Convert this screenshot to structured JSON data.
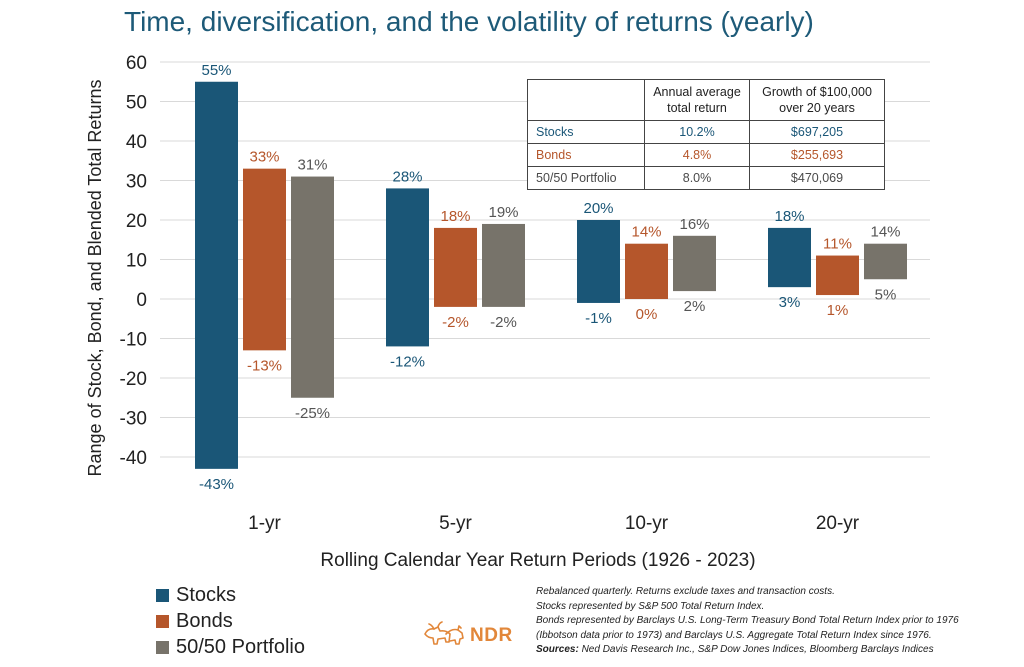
{
  "title": "Time, diversification, and the volatility of returns (yearly)",
  "colors": {
    "stocks": "#1a5677",
    "bonds": "#b5562b",
    "portfolio": "#77736a",
    "title": "#1d5a78",
    "logo": "#e2873a"
  },
  "chart_data": {
    "type": "bar",
    "subtype": "floating-range",
    "title": "Time, diversification, and the volatility of returns (yearly)",
    "xlabel": "Rolling Calendar Year Return Periods (1926 - 2023)",
    "ylabel": "Range of Stock, Bond, and Blended Total Returns",
    "ylim": [
      -45,
      60
    ],
    "yticks": [
      60,
      50,
      40,
      30,
      20,
      10,
      0,
      -10,
      -20,
      -30,
      -40
    ],
    "grid": true,
    "legend_position": "bottom-left",
    "categories": [
      "1-yr",
      "5-yr",
      "10-yr",
      "20-yr"
    ],
    "series": [
      {
        "name": "Stocks",
        "color": "#1a5677",
        "high": [
          55,
          28,
          20,
          18
        ],
        "low": [
          -43,
          -12,
          -1,
          3
        ],
        "high_labels": [
          "55%",
          "28%",
          "20%",
          "18%"
        ],
        "low_labels": [
          "-43%",
          "-12%",
          "-1%",
          "3%"
        ]
      },
      {
        "name": "Bonds",
        "color": "#b5562b",
        "high": [
          33,
          18,
          14,
          11
        ],
        "low": [
          -13,
          -2,
          0,
          1
        ],
        "high_labels": [
          "33%",
          "18%",
          "14%",
          "11%"
        ],
        "low_labels": [
          "-13%",
          "-2%",
          "0%",
          "1%"
        ]
      },
      {
        "name": "50/50 Portfolio",
        "color": "#77736a",
        "high": [
          31,
          19,
          16,
          14
        ],
        "low": [
          -25,
          -2,
          2,
          5
        ],
        "high_labels": [
          "31%",
          "19%",
          "16%",
          "14%"
        ],
        "low_labels": [
          "-25%",
          "-2%",
          "2%",
          "5%"
        ]
      }
    ]
  },
  "table": {
    "headers": [
      "",
      "Annual average total return",
      "Growth of $100,000 over 20 years"
    ],
    "rows": [
      {
        "label": "Stocks",
        "avg": "10.2%",
        "growth": "$697,205",
        "color": "#1a5677"
      },
      {
        "label": "Bonds",
        "avg": "4.8%",
        "growth": "$255,693",
        "color": "#b5562b"
      },
      {
        "label": "50/50 Portfolio",
        "avg": "8.0%",
        "growth": "$470,069",
        "color": "#4a4a4a"
      }
    ]
  },
  "legend": [
    {
      "label": "Stocks",
      "color": "#1a5677"
    },
    {
      "label": "Bonds",
      "color": "#b5562b"
    },
    {
      "label": "50/50 Portfolio",
      "color": "#77736a"
    }
  ],
  "footnotes": {
    "line1": "Rebalanced quarterly. Returns exclude taxes and transaction costs.",
    "line2": "Stocks represented by S&P 500 Total Return Index.",
    "line3": "Bonds represented by Barclays U.S. Long-Term Treasury Bond Total Return Index prior to 1976",
    "line4": "(Ibbotson data prior to 1973) and Barclays U.S. Aggregate Total Return Index since 1976.",
    "sources_label": "Sources:",
    "sources_text": " Ned Davis Research Inc., S&P Dow Jones Indices, Bloomberg Barclays Indices"
  },
  "logo": {
    "text": "NDR",
    "icon": "bull-bear-icon"
  }
}
